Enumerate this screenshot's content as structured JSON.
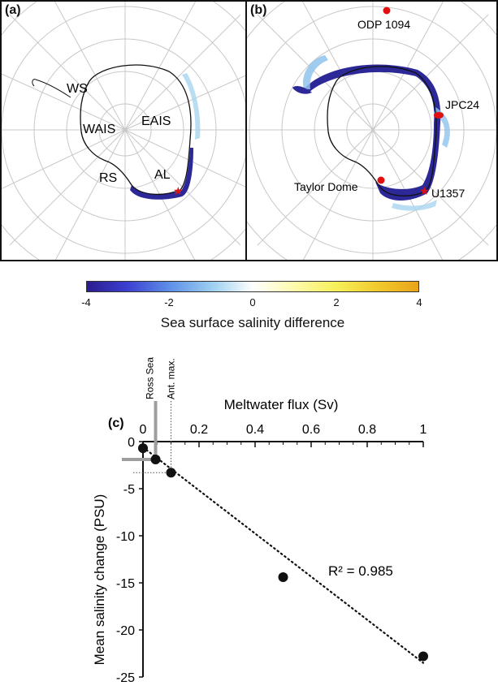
{
  "panel_a": {
    "letter": "(a)",
    "regions": [
      "WS",
      "EAIS",
      "WAIS",
      "RS",
      "AL"
    ]
  },
  "panel_b": {
    "letter": "(b)",
    "sites": [
      "ODP 1094",
      "JPC24",
      "Taylor Dome",
      "U1357"
    ]
  },
  "colorbar": {
    "ticks": [
      "-4",
      "-2",
      "0",
      "2",
      "4"
    ],
    "label": "Sea surface salinity difference",
    "colors": [
      "#2b1c8f",
      "#3b3fd0",
      "#9ed0f0",
      "#ffffff",
      "#f6f05a",
      "#e9a41a"
    ]
  },
  "panel_c_letter": "(c)",
  "chart_data": {
    "type": "scatter",
    "xlabel": "Meltwater flux (Sv)",
    "ylabel": "Mean salinity change (PSU)",
    "xlim": [
      0,
      1
    ],
    "ylim": [
      -25,
      0
    ],
    "x_ticks": [
      "0",
      "0.2",
      "0.4",
      "0.6",
      "0.8",
      "1"
    ],
    "y_ticks": [
      "0",
      "-5",
      "-10",
      "-15",
      "-20",
      "-25"
    ],
    "points": [
      {
        "x": 0.0,
        "y": -0.7
      },
      {
        "x": 0.045,
        "y": -1.9
      },
      {
        "x": 0.1,
        "y": -3.3
      },
      {
        "x": 0.5,
        "y": -14.4
      },
      {
        "x": 1.0,
        "y": -22.8
      }
    ],
    "trendline": {
      "x": [
        0.0,
        1.0
      ],
      "y": [
        -0.6,
        -23.5
      ]
    },
    "r2_label": "R² = 0.985",
    "markers": [
      {
        "label": "Ross Sea",
        "x": 0.045,
        "y": -1.9
      },
      {
        "label": "Ant. max.",
        "x": 0.1,
        "y": -3.3
      }
    ],
    "legend": "none",
    "grid": false
  }
}
